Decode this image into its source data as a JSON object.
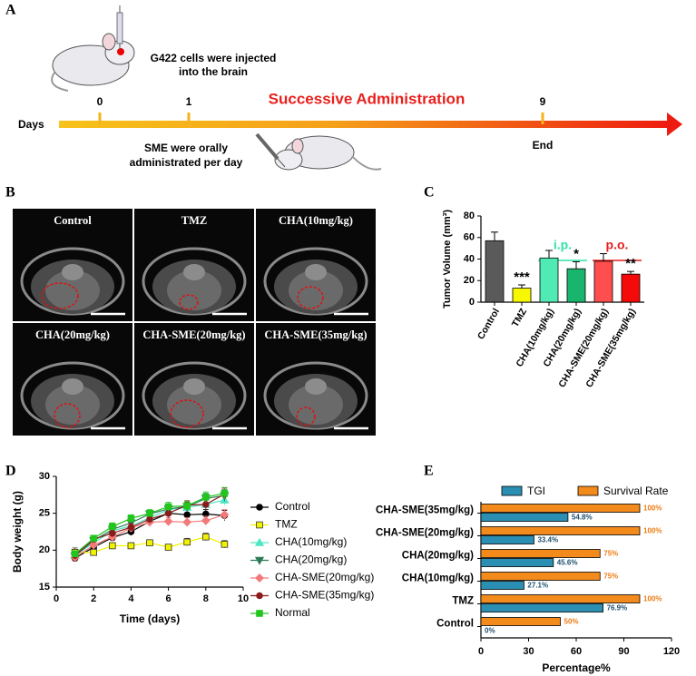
{
  "panel_a": {
    "label": "A",
    "injection_note": [
      "G422 cells were injected",
      "into the brain"
    ],
    "axis_label": "Days",
    "days": [
      0,
      1,
      9
    ],
    "phase": "Successive Administration",
    "end_label": "End",
    "oral_note": [
      "SME were orally",
      "administrated per day"
    ]
  },
  "panel_b": {
    "label": "B",
    "images": [
      "Control",
      "TMZ",
      "CHA(10mg/kg)",
      "CHA(20mg/kg)",
      "CHA-SME(20mg/kg)",
      "CHA-SME(35mg/kg)"
    ]
  },
  "chart_data": [
    {
      "type": "bar",
      "panel_label": "C",
      "y_label": "Tumor Volume (mm³)",
      "categories": [
        "Control",
        "TMZ",
        "CHA(10mg/kg)",
        "CHA(20mg/kg)",
        "CHA-SME(20mg/kg)",
        "CHA-SME(35mg/kg)"
      ],
      "values": [
        57,
        13,
        41,
        31,
        38,
        26
      ],
      "errors": [
        8,
        3,
        7,
        6.5,
        7,
        2.5
      ],
      "colors": [
        "#5a5a5a",
        "#f7f700",
        "#50eab4",
        "#19b56c",
        "#ff4e4e",
        "#f50a0a"
      ],
      "significance": [
        null,
        "***",
        null,
        "*",
        null,
        "**"
      ],
      "groups": [
        {
          "label": "i.p.",
          "color": "#2fe3a6"
        },
        {
          "label": "p.o.",
          "color": "#e41f1f"
        }
      ],
      "ylim": [
        0,
        80
      ],
      "yticks": [
        0,
        20,
        40,
        60,
        80
      ]
    },
    {
      "type": "line",
      "panel_label": "D",
      "x_label": "Time (days)",
      "y_label": "Body weight (g)",
      "x": [
        1,
        2,
        3,
        4,
        5,
        6,
        7,
        8,
        9
      ],
      "series": [
        {
          "name": "Control",
          "color": "#000000",
          "marker": "circle",
          "values": [
            18.9,
            20.4,
            21.7,
            22.5,
            23.9,
            25.0,
            24.8,
            24.9,
            24.7
          ],
          "errors": [
            0.3,
            0.4,
            0.4,
            0.5,
            0.5,
            0.6,
            0.6,
            0.6,
            0.7
          ]
        },
        {
          "name": "TMZ",
          "color": "#f2f200",
          "marker": "square",
          "values": [
            19.7,
            19.7,
            20.6,
            20.6,
            21.0,
            20.4,
            21.1,
            21.8,
            20.8
          ],
          "errors": [
            0.6,
            0.3,
            0.4,
            0.4,
            0.4,
            0.3,
            0.5,
            0.5,
            0.5
          ]
        },
        {
          "name": "CHA(10mg/kg)",
          "color": "#4fe6c4",
          "marker": "triangle-up",
          "values": [
            19.3,
            21.0,
            22.6,
            23.3,
            24.4,
            25.5,
            25.8,
            26.2,
            26.8
          ],
          "errors": [
            0.4,
            0.4,
            0.5,
            0.5,
            0.5,
            0.6,
            0.6,
            0.7,
            0.7
          ]
        },
        {
          "name": "CHA(20mg/kg)",
          "color": "#2d7a58",
          "marker": "triangle-down",
          "values": [
            19.2,
            21.3,
            22.8,
            23.7,
            24.9,
            25.6,
            25.9,
            27.0,
            27.4
          ],
          "errors": [
            0.4,
            0.4,
            0.5,
            0.5,
            0.5,
            0.6,
            0.6,
            0.7,
            0.8
          ]
        },
        {
          "name": "CHA-SME(20mg/kg)",
          "color": "#f27a7a",
          "marker": "diamond",
          "values": [
            19.0,
            20.7,
            21.8,
            23.0,
            23.8,
            23.9,
            23.8,
            24.0,
            24.8
          ],
          "errors": [
            0.4,
            0.4,
            0.4,
            0.5,
            0.5,
            0.5,
            0.6,
            0.6,
            0.7
          ]
        },
        {
          "name": "CHA-SME(35mg/kg)",
          "color": "#8b1a1a",
          "marker": "circle",
          "values": [
            19.3,
            21.5,
            22.3,
            23.1,
            24.2,
            25.0,
            26.1,
            26.2,
            27.6
          ],
          "errors": [
            0.4,
            0.4,
            0.5,
            0.5,
            0.5,
            0.6,
            0.6,
            0.7,
            0.8
          ]
        },
        {
          "name": "Normal",
          "color": "#22c41e",
          "marker": "square",
          "values": [
            19.5,
            21.6,
            23.2,
            24.3,
            25.0,
            25.9,
            26.0,
            27.2,
            27.7
          ],
          "errors": [
            0.4,
            0.4,
            0.5,
            0.5,
            0.5,
            0.6,
            0.6,
            0.7,
            0.8
          ]
        }
      ],
      "xlim": [
        0,
        10
      ],
      "xticks": [
        0,
        2,
        4,
        6,
        8,
        10
      ],
      "ylim": [
        15,
        30
      ],
      "yticks": [
        15,
        20,
        25,
        30
      ],
      "legend": "right"
    },
    {
      "type": "hbar",
      "panel_label": "E",
      "x_label": "Percentage%",
      "categories": [
        "CHA-SME(35mg/kg)",
        "CHA-SME(20mg/kg)",
        "CHA(20mg/kg)",
        "CHA(10mg/kg)",
        "TMZ",
        "Control"
      ],
      "series": [
        {
          "name": "TGI",
          "color": "#2a8fb2",
          "label_color": "#1d4f6e",
          "values": [
            54.8,
            33.4,
            45.6,
            27.1,
            76.9,
            0
          ],
          "value_labels": [
            "54.8%",
            "33.4%",
            "45.6%",
            "27.1%",
            "76.9%",
            "0%"
          ]
        },
        {
          "name": "Survival Rate",
          "color": "#f28a1c",
          "label_color": "#ef7a12",
          "values": [
            100,
            100,
            75,
            75,
            100,
            50
          ],
          "value_labels": [
            "100%",
            "100%",
            "75%",
            "75%",
            "100%",
            "50%"
          ]
        }
      ],
      "xlim": [
        0,
        120
      ],
      "xticks": [
        0,
        30,
        60,
        90,
        120
      ],
      "legend": "top"
    }
  ]
}
